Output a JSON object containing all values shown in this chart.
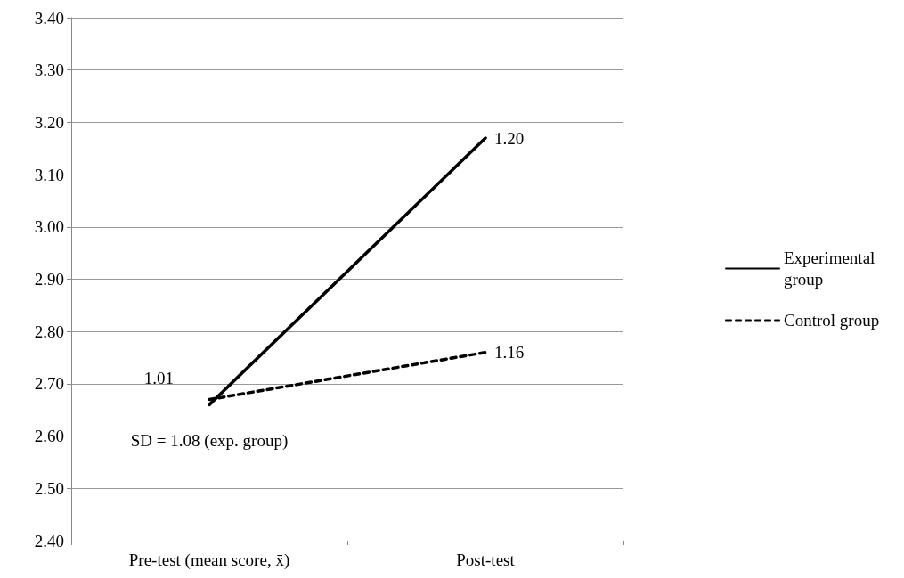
{
  "chart_data": {
    "type": "line",
    "categories": [
      "Pre-test (mean score, x̄)",
      "Post-test"
    ],
    "series": [
      {
        "name": "Experimental group",
        "color": "#000000",
        "line_style": "solid",
        "values": [
          2.66,
          3.17
        ]
      },
      {
        "name": "Control group",
        "color": "#000000",
        "line_style": "dashed",
        "values": [
          2.67,
          2.76
        ]
      }
    ],
    "ylim": [
      2.4,
      3.4
    ],
    "yticks": [
      {
        "value": 2.4,
        "label": "2.40"
      },
      {
        "value": 2.5,
        "label": "2.50"
      },
      {
        "value": 2.6,
        "label": "2.60"
      },
      {
        "value": 2.7,
        "label": "2.70"
      },
      {
        "value": 2.8,
        "label": "2.80"
      },
      {
        "value": 2.9,
        "label": "2.90"
      },
      {
        "value": 3.0,
        "label": "3.00"
      },
      {
        "value": 3.1,
        "label": "3.10"
      },
      {
        "value": 3.2,
        "label": "3.20"
      },
      {
        "value": 3.3,
        "label": "3.30"
      },
      {
        "value": 3.4,
        "label": "3.40"
      }
    ],
    "annotations": [
      {
        "text": "1.01",
        "x": "Pre-test (mean score, x̄)",
        "y": 2.66
      },
      {
        "text": "1.20",
        "x": "Post-test",
        "y": 3.17
      },
      {
        "text": "1.16",
        "x": "Post-test",
        "y": 2.76
      },
      "SD = 1.08 (exp. group)"
    ],
    "grid": "y",
    "legend": "right",
    "marker": "none"
  }
}
